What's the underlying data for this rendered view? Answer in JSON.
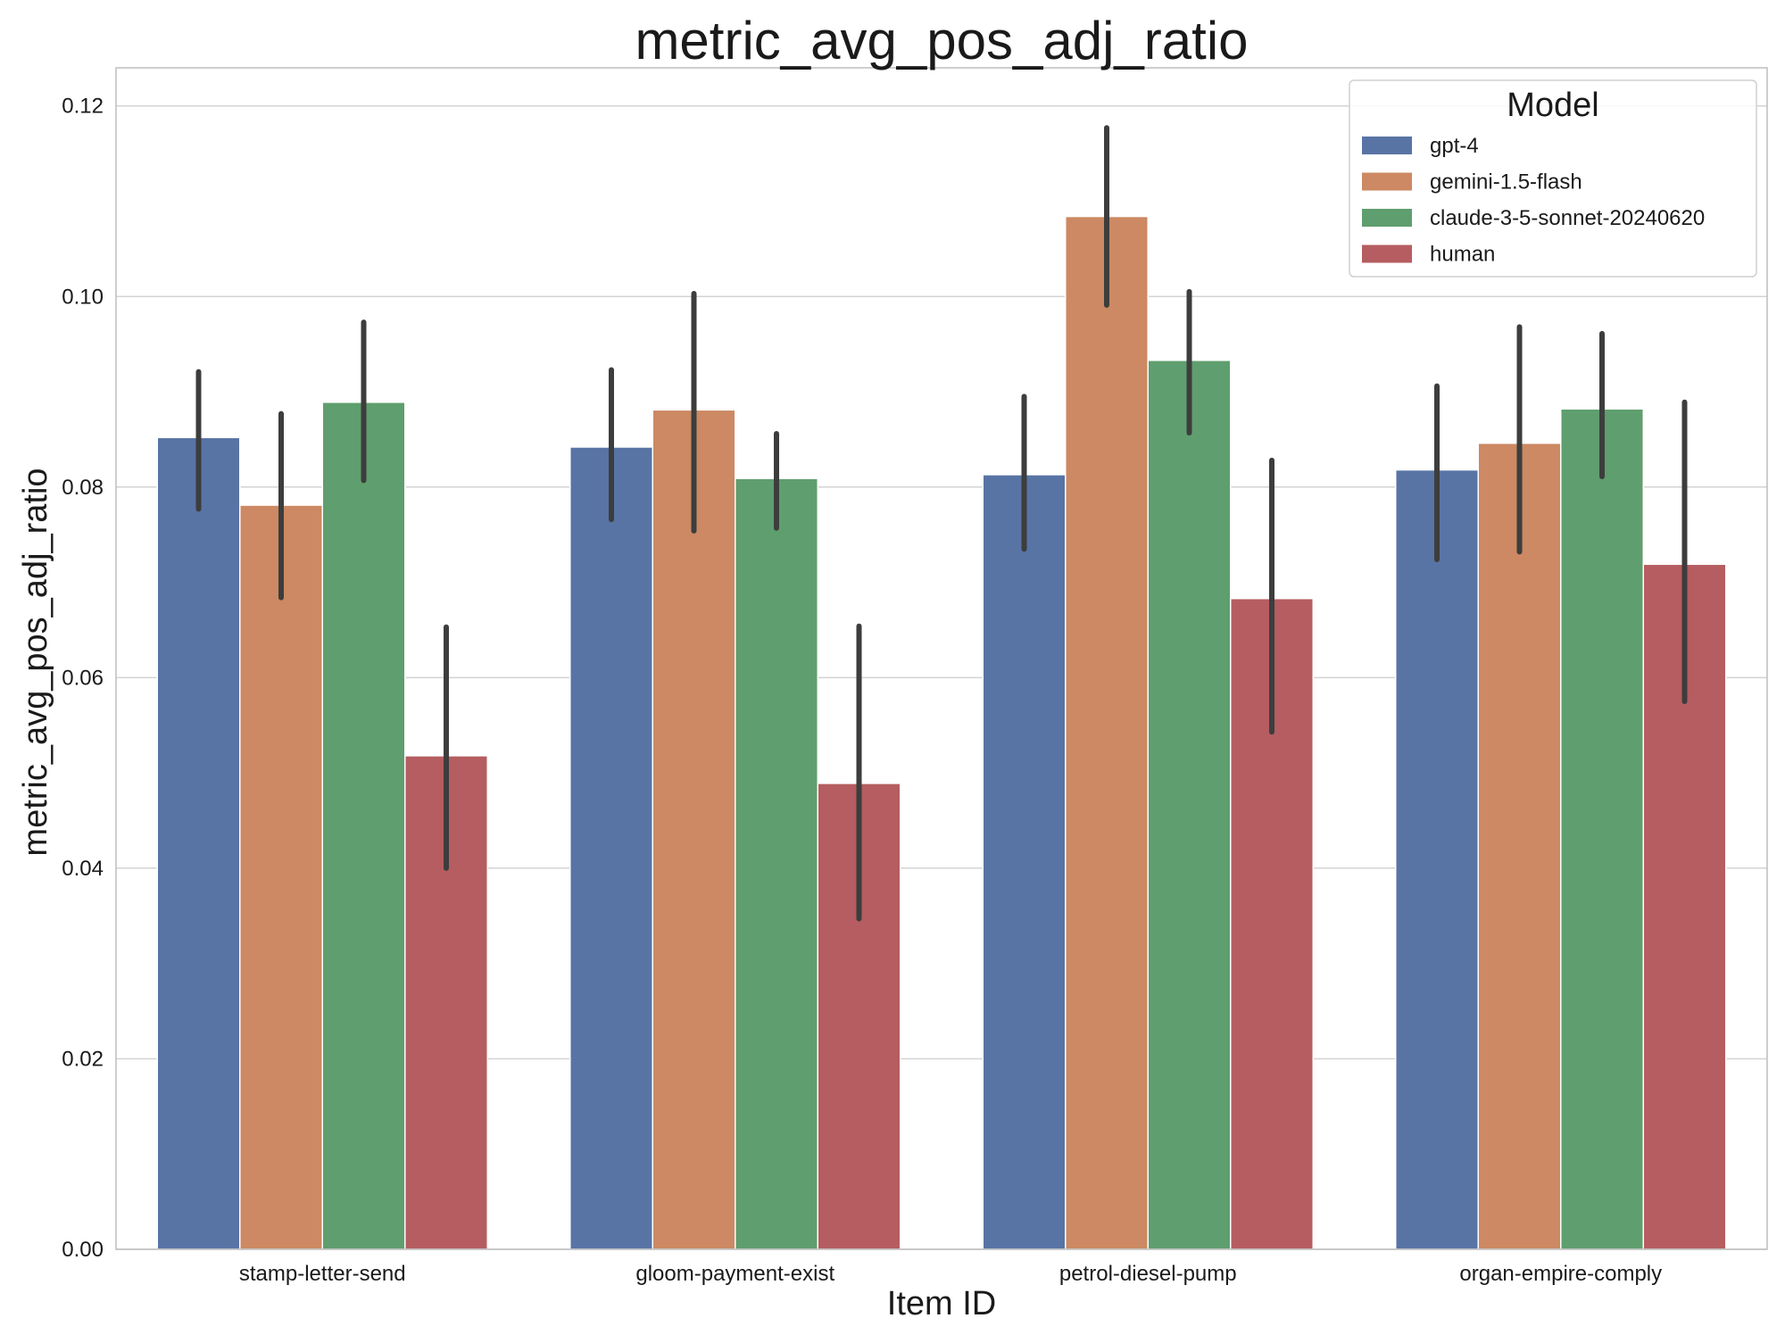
{
  "chart_data": {
    "type": "bar",
    "title": "metric_avg_pos_adj_ratio",
    "xlabel": "Item ID",
    "ylabel": "metric_avg_pos_adj_ratio",
    "ylim": [
      0,
      0.124
    ],
    "yticks": [
      0.0,
      0.02,
      0.04,
      0.06,
      0.08,
      0.1,
      0.12
    ],
    "ytick_labels": [
      "0.00",
      "0.02",
      "0.04",
      "0.06",
      "0.08",
      "0.10",
      "0.12"
    ],
    "grid": "horizontal",
    "categories": [
      "stamp-letter-send",
      "gloom-payment-exist",
      "petrol-diesel-pump",
      "organ-empire-comply"
    ],
    "legend": {
      "title": "Model",
      "placement": "top-right"
    },
    "series": [
      {
        "name": "gpt-4",
        "color": "#5874a5",
        "values": [
          0.0852,
          0.0842,
          0.0813,
          0.0818
        ],
        "ci_low": [
          0.0777,
          0.0766,
          0.0735,
          0.0724
        ],
        "ci_high": [
          0.0921,
          0.0923,
          0.0895,
          0.0906
        ]
      },
      {
        "name": "gemini-1.5-flash",
        "color": "#cc8963",
        "values": [
          0.0781,
          0.0881,
          0.1084,
          0.0846
        ],
        "ci_low": [
          0.0684,
          0.0754,
          0.0991,
          0.0732
        ],
        "ci_high": [
          0.0877,
          0.1003,
          0.1177,
          0.0968
        ]
      },
      {
        "name": "claude-3-5-sonnet-20240620",
        "color": "#5f9e6e",
        "values": [
          0.0889,
          0.0809,
          0.0933,
          0.0882
        ],
        "ci_low": [
          0.0807,
          0.0757,
          0.0857,
          0.0811
        ],
        "ci_high": [
          0.0973,
          0.0856,
          0.1005,
          0.0961
        ]
      },
      {
        "name": "human",
        "color": "#b55d60",
        "values": [
          0.0518,
          0.0489,
          0.0683,
          0.0719
        ],
        "ci_low": [
          0.04,
          0.0347,
          0.0543,
          0.0575
        ],
        "ci_high": [
          0.0653,
          0.0654,
          0.0828,
          0.0889
        ]
      }
    ]
  }
}
